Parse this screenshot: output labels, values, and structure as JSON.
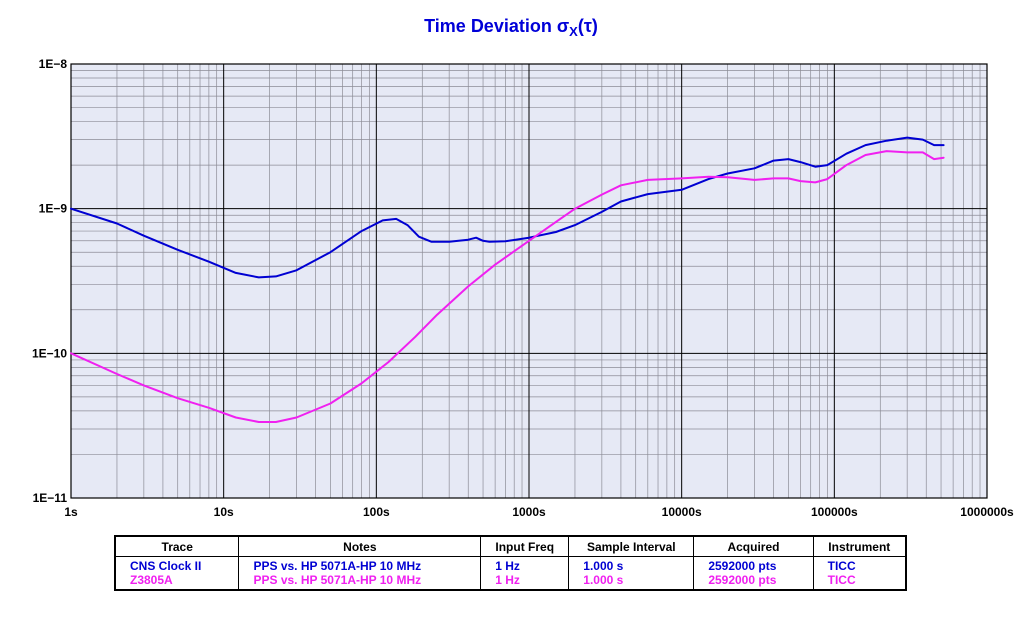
{
  "title": {
    "main": "Time Deviation σ",
    "sub": "X",
    "tail": "(τ)"
  },
  "colors": {
    "plot_bg": "#e6e9f5",
    "grid_major": "#000000",
    "grid_minor": "#8c8c96",
    "title": "#0000d8"
  },
  "chart_data": {
    "type": "line",
    "title": "Time Deviation σX(τ)",
    "x_scale": "log",
    "y_scale": "log",
    "xlim": [
      1,
      1000000
    ],
    "ylim": [
      1e-11,
      1e-08
    ],
    "x_tick_labels": [
      "1s",
      "10s",
      "100s",
      "1000s",
      "10000s",
      "100000s",
      "1000000s"
    ],
    "y_tick_labels": [
      "1E−8",
      "1E−9",
      "1E−10",
      "1E−11"
    ],
    "grid": true,
    "series": [
      {
        "name": "CNS Clock II",
        "color": "#0000d2",
        "x": [
          1,
          2,
          3,
          5,
          8,
          12,
          17,
          22,
          30,
          50,
          80,
          110,
          135,
          160,
          190,
          230,
          300,
          400,
          450,
          500,
          550,
          700,
          1000,
          1500,
          2000,
          3000,
          4000,
          6000,
          10000,
          15000,
          20000,
          30000,
          40000,
          50000,
          60000,
          75000,
          90000,
          120000,
          160000,
          220000,
          300000,
          380000,
          450000,
          520000
        ],
        "y": [
          1e-09,
          7.9e-10,
          6.5e-10,
          5.2e-10,
          4.3e-10,
          3.6e-10,
          3.35e-10,
          3.4e-10,
          3.75e-10,
          5e-10,
          7e-10,
          8.3e-10,
          8.5e-10,
          7.7e-10,
          6.4e-10,
          5.9e-10,
          5.9e-10,
          6.1e-10,
          6.3e-10,
          6e-10,
          5.9e-10,
          5.95e-10,
          6.3e-10,
          6.9e-10,
          7.7e-10,
          9.5e-10,
          1.12e-09,
          1.26e-09,
          1.35e-09,
          1.6e-09,
          1.75e-09,
          1.9e-09,
          2.15e-09,
          2.2e-09,
          2.1e-09,
          1.95e-09,
          2e-09,
          2.4e-09,
          2.75e-09,
          2.95e-09,
          3.1e-09,
          3e-09,
          2.75e-09,
          2.75e-09
        ]
      },
      {
        "name": "Z3805A",
        "color": "#f020f0",
        "x": [
          1,
          2,
          3,
          5,
          8,
          12,
          17,
          22,
          30,
          50,
          80,
          120,
          180,
          250,
          400,
          600,
          1000,
          1500,
          2000,
          3000,
          4000,
          6000,
          10000,
          15000,
          20000,
          30000,
          40000,
          50000,
          60000,
          75000,
          90000,
          120000,
          160000,
          220000,
          300000,
          380000,
          450000,
          520000
        ],
        "y": [
          1e-10,
          7.2e-11,
          6e-11,
          4.9e-11,
          4.2e-11,
          3.6e-11,
          3.35e-11,
          3.35e-11,
          3.6e-11,
          4.5e-11,
          6.2e-11,
          8.7e-11,
          1.3e-10,
          1.85e-10,
          2.9e-10,
          4.1e-10,
          6e-10,
          8.1e-10,
          1e-09,
          1.25e-09,
          1.45e-09,
          1.58e-09,
          1.62e-09,
          1.66e-09,
          1.65e-09,
          1.58e-09,
          1.62e-09,
          1.62e-09,
          1.55e-09,
          1.52e-09,
          1.6e-09,
          2e-09,
          2.35e-09,
          2.5e-09,
          2.45e-09,
          2.45e-09,
          2.2e-09,
          2.25e-09
        ]
      }
    ]
  },
  "legend_table": {
    "headers": [
      "Trace",
      "Notes",
      "Input Freq",
      "Sample Interval",
      "Acquired",
      "Instrument"
    ],
    "rows": [
      {
        "color": "#0000d2",
        "cells": [
          "CNS Clock II",
          "PPS vs. HP 5071A-HP 10 MHz",
          "1 Hz",
          "1.000 s",
          "2592000 pts",
          "TICC"
        ]
      },
      {
        "color": "#f020f0",
        "cells": [
          "Z3805A",
          "PPS vs. HP 5071A-HP 10 MHz",
          "1 Hz",
          "1.000 s",
          "2592000 pts",
          "TICC"
        ]
      }
    ]
  }
}
